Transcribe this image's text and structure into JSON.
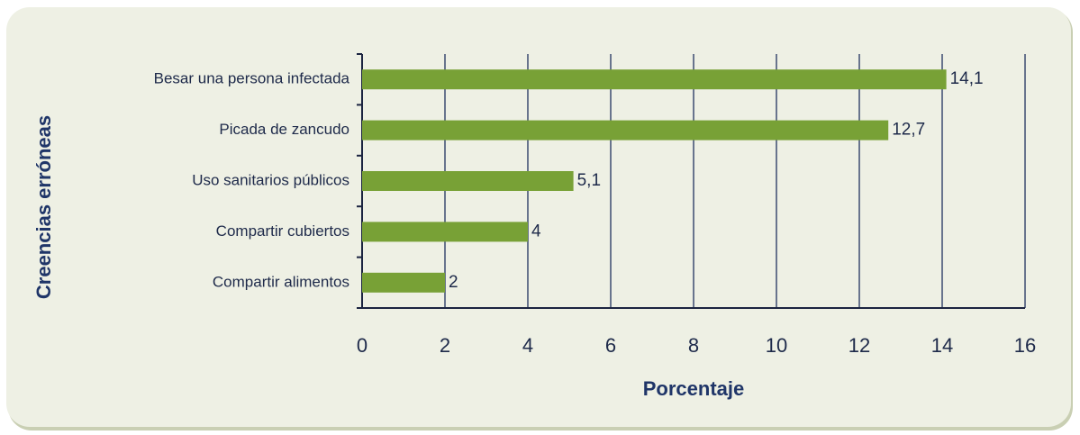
{
  "chart_data": {
    "type": "bar",
    "orientation": "horizontal",
    "categories": [
      "Besar una persona infectada",
      "Picada de zancudo",
      "Uso sanitarios públicos",
      "Compartir cubiertos",
      "Compartir alimentos"
    ],
    "values": [
      14.1,
      12.7,
      5.1,
      4,
      2
    ],
    "value_labels": [
      "14,1",
      "12,7",
      "5,1",
      "4",
      "2"
    ],
    "color": "#78a136",
    "xlabel": "Porcentaje",
    "ylabel": "Creencias erróneas",
    "xlim": [
      0,
      16
    ],
    "xticks": [
      0,
      2,
      4,
      6,
      8,
      10,
      12,
      14,
      16
    ],
    "grid": true
  }
}
